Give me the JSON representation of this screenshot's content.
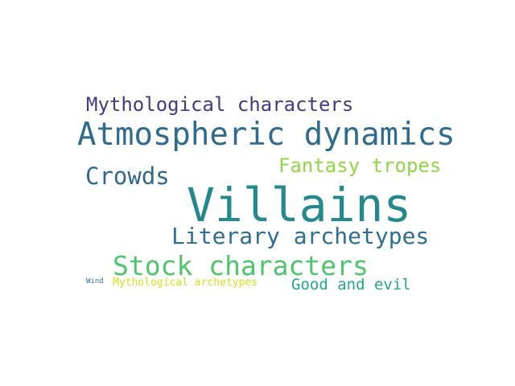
{
  "words": [
    {
      "text": "Villains",
      "color": "#24898c"
    },
    {
      "text": "Atmospheric dynamics",
      "color": "#2f6b8e"
    },
    {
      "text": "Stock characters",
      "color": "#4ec46c"
    },
    {
      "text": "Literary archetypes",
      "color": "#2e6e8e"
    },
    {
      "text": "Crowds",
      "color": "#31688e"
    },
    {
      "text": "Mythological characters",
      "color": "#443983"
    },
    {
      "text": "Fantasy tropes",
      "color": "#8fd744"
    },
    {
      "text": "Good and evil",
      "color": "#22a884"
    },
    {
      "text": "Mythological archetypes",
      "color": "#d8e219"
    },
    {
      "text": "Wind",
      "color": "#2a788e"
    }
  ]
}
